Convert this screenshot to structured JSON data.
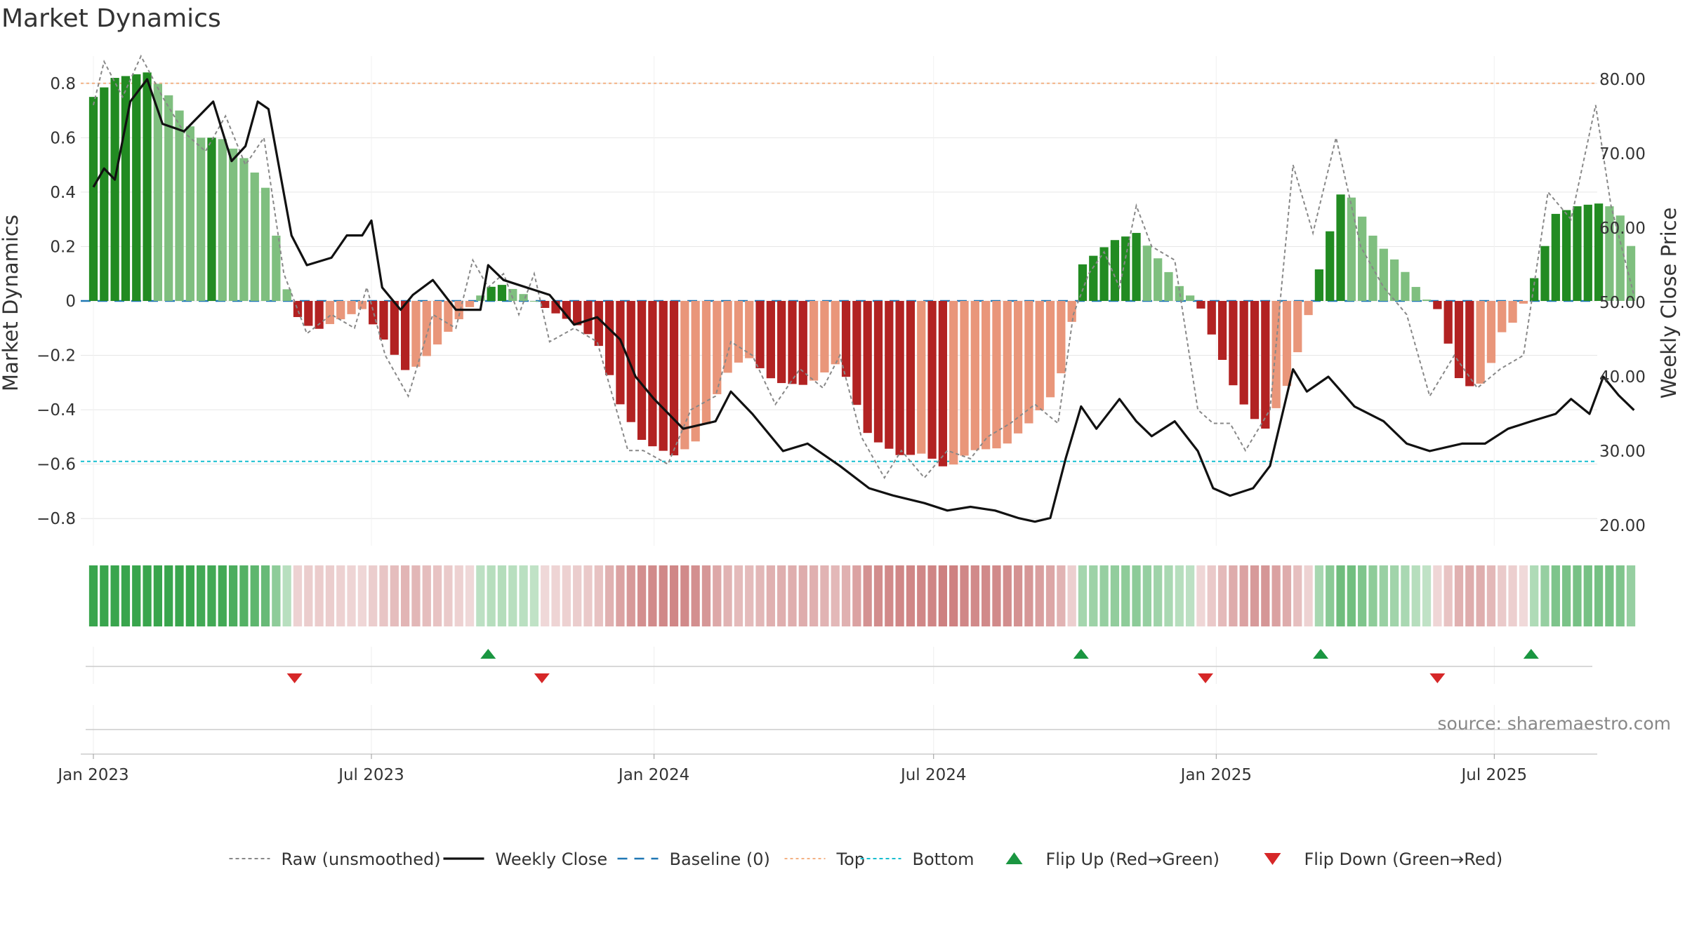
{
  "title": "Market Dynamics",
  "source": "source: sharemaestro.com",
  "colors": {
    "strong_green": "#228b22",
    "light_green": "#7fbf7f",
    "strong_red": "#b22222",
    "light_red": "#e9967a",
    "close": "#111111",
    "raw": "#888888",
    "baseline": "#1f77b4",
    "top": "#f4b183",
    "bottom": "#17becf",
    "flip_up": "#1a9641",
    "flip_down": "#d62728"
  },
  "chart_data": {
    "type": "bar+line",
    "title": "Market Dynamics",
    "left_axis": {
      "label": "Market Dynamics",
      "range": [
        -0.9,
        0.9
      ],
      "ticks": [
        0.8,
        0.6,
        0.4,
        0.2,
        0,
        -0.2,
        -0.4,
        -0.6,
        -0.8
      ],
      "tick_labels": [
        "0.8",
        "0.6",
        "0.4",
        "0.2",
        "0",
        "−0.2",
        "−0.4",
        "−0.6",
        "−0.8"
      ]
    },
    "right_axis": {
      "label": "Weekly Close Price",
      "range": [
        17.0,
        80.0
      ],
      "ticks": [
        80,
        70,
        60,
        50,
        40,
        30,
        20
      ],
      "tick_labels": [
        "80.00",
        "70.00",
        "60.00",
        "50.00",
        "40.00",
        "30.00",
        "20.00"
      ]
    },
    "x_axis": {
      "start": "2023-01-01",
      "end": "2025-09-30",
      "ticks": [
        "2023-01-01",
        "2023-07-01",
        "2024-01-01",
        "2024-07-01",
        "2025-01-01",
        "2025-07-01"
      ],
      "tick_labels": [
        "Jan 2023",
        "Jul 2023",
        "Jan 2024",
        "Jul 2024",
        "Jan 2025",
        "Jul 2025"
      ]
    },
    "reference_lines": {
      "baseline": 0,
      "top": 0.8,
      "bottom": -0.59
    },
    "bar_anchors": [
      [
        "2023-01-01",
        0.75
      ],
      [
        "2023-01-15",
        0.82
      ],
      [
        "2023-02-05",
        0.84
      ],
      [
        "2023-02-20",
        0.75
      ],
      [
        "2023-03-10",
        0.6
      ],
      [
        "2023-03-25",
        0.6
      ],
      [
        "2023-04-10",
        0.52
      ],
      [
        "2023-04-25",
        0.4
      ],
      [
        "2023-05-05",
        0.08
      ],
      [
        "2023-05-12",
        -0.05
      ],
      [
        "2023-05-25",
        -0.11
      ],
      [
        "2023-06-10",
        -0.07
      ],
      [
        "2023-06-25",
        -0.03
      ],
      [
        "2023-07-10",
        -0.15
      ],
      [
        "2023-07-25",
        -0.27
      ],
      [
        "2023-08-10",
        -0.18
      ],
      [
        "2023-08-25",
        -0.08
      ],
      [
        "2023-09-05",
        -0.01
      ],
      [
        "2023-09-15",
        0.05
      ],
      [
        "2023-09-25",
        0.06
      ],
      [
        "2023-10-10",
        0.02
      ],
      [
        "2023-10-20",
        -0.02
      ],
      [
        "2023-11-10",
        -0.08
      ],
      [
        "2023-11-25",
        -0.15
      ],
      [
        "2023-12-10",
        -0.38
      ],
      [
        "2023-12-25",
        -0.52
      ],
      [
        "2024-01-15",
        -0.57
      ],
      [
        "2024-02-01",
        -0.5
      ],
      [
        "2024-02-15",
        -0.28
      ],
      [
        "2024-03-01",
        -0.2
      ],
      [
        "2024-03-20",
        -0.3
      ],
      [
        "2024-04-10",
        -0.31
      ],
      [
        "2024-05-01",
        -0.22
      ],
      [
        "2024-05-20",
        -0.5
      ],
      [
        "2024-06-10",
        -0.57
      ],
      [
        "2024-06-25",
        -0.56
      ],
      [
        "2024-07-10",
        -0.62
      ],
      [
        "2024-07-25",
        -0.55
      ],
      [
        "2024-08-15",
        -0.54
      ],
      [
        "2024-09-01",
        -0.45
      ],
      [
        "2024-09-20",
        -0.32
      ],
      [
        "2024-09-30",
        -0.05
      ],
      [
        "2024-10-05",
        0.13
      ],
      [
        "2024-10-25",
        0.22
      ],
      [
        "2024-11-10",
        0.25
      ],
      [
        "2024-11-25",
        0.15
      ],
      [
        "2024-12-10",
        0.04
      ],
      [
        "2024-12-20",
        0.0
      ],
      [
        "2024-12-25",
        -0.07
      ],
      [
        "2025-01-15",
        -0.35
      ],
      [
        "2025-02-01",
        -0.48
      ],
      [
        "2025-02-15",
        -0.33
      ],
      [
        "2025-02-28",
        -0.1
      ],
      [
        "2025-03-10",
        0.14
      ],
      [
        "2025-03-25",
        0.43
      ],
      [
        "2025-04-15",
        0.22
      ],
      [
        "2025-05-01",
        0.13
      ],
      [
        "2025-05-15",
        0.02
      ],
      [
        "2025-05-25",
        -0.03
      ],
      [
        "2025-06-10",
        -0.32
      ],
      [
        "2025-06-25",
        -0.3
      ],
      [
        "2025-07-05",
        -0.12
      ],
      [
        "2025-07-15",
        -0.07
      ],
      [
        "2025-07-25",
        0.05
      ],
      [
        "2025-08-10",
        0.32
      ],
      [
        "2025-08-25",
        0.35
      ],
      [
        "2025-09-10",
        0.36
      ],
      [
        "2025-09-20",
        0.33
      ],
      [
        "2025-09-30",
        0.17
      ]
    ],
    "raw_anchors": [
      [
        "2023-01-01",
        0.72
      ],
      [
        "2023-01-08",
        0.88
      ],
      [
        "2023-01-20",
        0.75
      ],
      [
        "2023-02-01",
        0.9
      ],
      [
        "2023-02-15",
        0.75
      ],
      [
        "2023-03-01",
        0.62
      ],
      [
        "2023-03-15",
        0.55
      ],
      [
        "2023-03-28",
        0.68
      ],
      [
        "2023-04-10",
        0.5
      ],
      [
        "2023-04-22",
        0.6
      ],
      [
        "2023-05-05",
        0.1
      ],
      [
        "2023-05-20",
        -0.12
      ],
      [
        "2023-06-05",
        -0.05
      ],
      [
        "2023-06-20",
        -0.1
      ],
      [
        "2023-06-28",
        0.05
      ],
      [
        "2023-07-10",
        -0.2
      ],
      [
        "2023-07-25",
        -0.35
      ],
      [
        "2023-08-10",
        -0.05
      ],
      [
        "2023-08-25",
        -0.1
      ],
      [
        "2023-09-05",
        0.15
      ],
      [
        "2023-09-15",
        0.05
      ],
      [
        "2023-09-25",
        0.1
      ],
      [
        "2023-10-05",
        -0.05
      ],
      [
        "2023-10-15",
        0.1
      ],
      [
        "2023-10-25",
        -0.15
      ],
      [
        "2023-11-10",
        -0.1
      ],
      [
        "2023-11-25",
        -0.15
      ],
      [
        "2023-12-15",
        -0.55
      ],
      [
        "2023-12-25",
        -0.55
      ],
      [
        "2024-01-10",
        -0.6
      ],
      [
        "2024-01-25",
        -0.4
      ],
      [
        "2024-02-10",
        -0.35
      ],
      [
        "2024-02-20",
        -0.15
      ],
      [
        "2024-03-05",
        -0.2
      ],
      [
        "2024-03-20",
        -0.38
      ],
      [
        "2024-04-05",
        -0.25
      ],
      [
        "2024-04-20",
        -0.32
      ],
      [
        "2024-05-01",
        -0.2
      ],
      [
        "2024-05-15",
        -0.5
      ],
      [
        "2024-05-30",
        -0.65
      ],
      [
        "2024-06-10",
        -0.55
      ],
      [
        "2024-06-25",
        -0.65
      ],
      [
        "2024-07-10",
        -0.55
      ],
      [
        "2024-07-25",
        -0.58
      ],
      [
        "2024-08-05",
        -0.5
      ],
      [
        "2024-08-20",
        -0.45
      ],
      [
        "2024-09-05",
        -0.38
      ],
      [
        "2024-09-20",
        -0.45
      ],
      [
        "2024-09-30",
        -0.05
      ],
      [
        "2024-10-10",
        0.1
      ],
      [
        "2024-10-20",
        0.18
      ],
      [
        "2024-10-30",
        0.05
      ],
      [
        "2024-11-10",
        0.35
      ],
      [
        "2024-11-20",
        0.2
      ],
      [
        "2024-12-05",
        0.15
      ],
      [
        "2024-12-20",
        -0.4
      ],
      [
        "2024-12-30",
        -0.45
      ],
      [
        "2025-01-10",
        -0.45
      ],
      [
        "2025-01-20",
        -0.55
      ],
      [
        "2025-02-05",
        -0.4
      ],
      [
        "2025-02-20",
        0.5
      ],
      [
        "2025-03-05",
        0.25
      ],
      [
        "2025-03-20",
        0.6
      ],
      [
        "2025-04-05",
        0.2
      ],
      [
        "2025-04-20",
        0.05
      ],
      [
        "2025-05-05",
        -0.05
      ],
      [
        "2025-05-20",
        -0.35
      ],
      [
        "2025-06-05",
        -0.2
      ],
      [
        "2025-06-20",
        -0.32
      ],
      [
        "2025-07-05",
        -0.25
      ],
      [
        "2025-07-20",
        -0.2
      ],
      [
        "2025-08-05",
        0.4
      ],
      [
        "2025-08-20",
        0.3
      ],
      [
        "2025-09-05",
        0.72
      ],
      [
        "2025-09-15",
        0.35
      ],
      [
        "2025-09-30",
        0.02
      ]
    ],
    "close_anchors": [
      [
        "2023-01-01",
        65.5
      ],
      [
        "2023-01-08",
        68.0
      ],
      [
        "2023-01-15",
        66.5
      ],
      [
        "2023-01-25",
        77.0
      ],
      [
        "2023-02-05",
        80.0
      ],
      [
        "2023-02-15",
        74.0
      ],
      [
        "2023-03-01",
        73.0
      ],
      [
        "2023-03-20",
        77.0
      ],
      [
        "2023-04-01",
        69.0
      ],
      [
        "2023-04-10",
        71.0
      ],
      [
        "2023-04-18",
        77.0
      ],
      [
        "2023-04-25",
        76.0
      ],
      [
        "2023-05-10",
        59.0
      ],
      [
        "2023-05-20",
        55.0
      ],
      [
        "2023-06-05",
        56.0
      ],
      [
        "2023-06-15",
        59.0
      ],
      [
        "2023-06-25",
        59.0
      ],
      [
        "2023-07-01",
        61.0
      ],
      [
        "2023-07-08",
        52.0
      ],
      [
        "2023-07-20",
        49.0
      ],
      [
        "2023-07-28",
        51.0
      ],
      [
        "2023-08-10",
        53.0
      ],
      [
        "2023-08-25",
        49.0
      ],
      [
        "2023-09-10",
        49.0
      ],
      [
        "2023-09-15",
        55.0
      ],
      [
        "2023-09-25",
        53.0
      ],
      [
        "2023-10-10",
        52.0
      ],
      [
        "2023-10-25",
        51.0
      ],
      [
        "2023-11-10",
        47.0
      ],
      [
        "2023-11-25",
        48.0
      ],
      [
        "2023-12-10",
        45.0
      ],
      [
        "2023-12-20",
        40.0
      ],
      [
        "2024-01-01",
        37.0
      ],
      [
        "2024-01-20",
        33.0
      ],
      [
        "2024-02-10",
        34.0
      ],
      [
        "2024-02-20",
        38.0
      ],
      [
        "2024-03-05",
        35.0
      ],
      [
        "2024-03-25",
        30.0
      ],
      [
        "2024-04-10",
        31.0
      ],
      [
        "2024-05-01",
        28.0
      ],
      [
        "2024-05-20",
        25.0
      ],
      [
        "2024-06-05",
        24.0
      ],
      [
        "2024-06-25",
        23.0
      ],
      [
        "2024-07-10",
        22.0
      ],
      [
        "2024-07-25",
        22.5
      ],
      [
        "2024-08-10",
        22.0
      ],
      [
        "2024-08-25",
        21.0
      ],
      [
        "2024-09-05",
        20.5
      ],
      [
        "2024-09-15",
        21.0
      ],
      [
        "2024-09-25",
        29.0
      ],
      [
        "2024-10-05",
        36.0
      ],
      [
        "2024-10-15",
        33.0
      ],
      [
        "2024-10-30",
        37.0
      ],
      [
        "2024-11-10",
        34.0
      ],
      [
        "2024-11-20",
        32.0
      ],
      [
        "2024-12-05",
        34.0
      ],
      [
        "2024-12-20",
        30.0
      ],
      [
        "2024-12-30",
        25.0
      ],
      [
        "2025-01-10",
        24.0
      ],
      [
        "2025-01-25",
        25.0
      ],
      [
        "2025-02-05",
        28.0
      ],
      [
        "2025-02-20",
        41.0
      ],
      [
        "2025-03-01",
        38.0
      ],
      [
        "2025-03-15",
        40.0
      ],
      [
        "2025-04-01",
        36.0
      ],
      [
        "2025-04-20",
        34.0
      ],
      [
        "2025-05-05",
        31.0
      ],
      [
        "2025-05-20",
        30.0
      ],
      [
        "2025-06-10",
        31.0
      ],
      [
        "2025-06-25",
        31.0
      ],
      [
        "2025-07-10",
        33.0
      ],
      [
        "2025-07-25",
        34.0
      ],
      [
        "2025-08-10",
        35.0
      ],
      [
        "2025-08-20",
        37.0
      ],
      [
        "2025-09-01",
        35.0
      ],
      [
        "2025-09-10",
        40.0
      ],
      [
        "2025-09-20",
        37.5
      ],
      [
        "2025-09-30",
        35.5
      ]
    ],
    "flips_up": [
      "2023-09-15",
      "2024-10-05",
      "2025-03-10",
      "2025-07-25"
    ],
    "flips_down": [
      "2023-05-12",
      "2023-10-20",
      "2024-12-25",
      "2025-05-25"
    ],
    "legend": [
      {
        "key": "raw",
        "label": "Raw (unsmoothed)"
      },
      {
        "key": "close",
        "label": "Weekly Close"
      },
      {
        "key": "baseline",
        "label": "Baseline (0)"
      },
      {
        "key": "top",
        "label": "Top"
      },
      {
        "key": "bottom",
        "label": "Bottom"
      },
      {
        "key": "flip_up",
        "label": "Flip Up (Red→Green)"
      },
      {
        "key": "flip_down",
        "label": "Flip Down (Green→Red)"
      }
    ],
    "legend_position": "bottom-center",
    "grid": true
  }
}
